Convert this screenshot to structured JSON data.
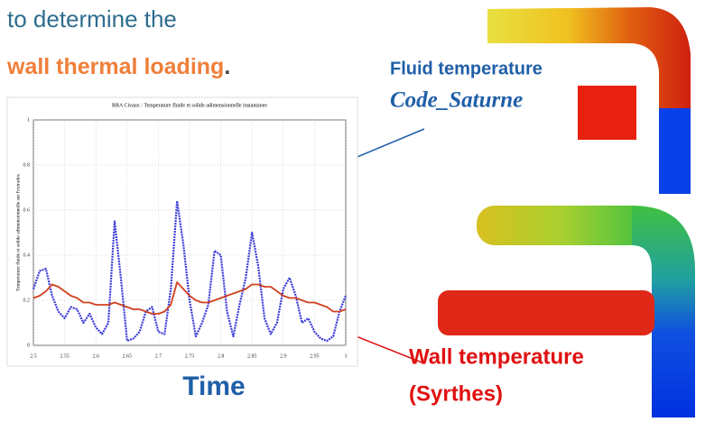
{
  "slide": {
    "intro": "to determine the",
    "highlight": "wall thermal loading",
    "period": ".",
    "fluid_label": "Fluid temperature",
    "fluid_code": "Code_Saturne",
    "wall_label": "Wall temperature",
    "wall_code": "(Syrthes)",
    "time_label": "Time"
  },
  "chart_data": {
    "type": "line",
    "title": "RRA Civaux : Temperature fluide et solide adimensionnelle instantanee",
    "y_label": "Temperature fluide et solide adimensionnelle sur l'extrados",
    "x": [
      2.5,
      2.51,
      2.52,
      2.53,
      2.54,
      2.55,
      2.56,
      2.57,
      2.58,
      2.59,
      2.6,
      2.61,
      2.62,
      2.63,
      2.64,
      2.65,
      2.66,
      2.67,
      2.68,
      2.69,
      2.7,
      2.71,
      2.72,
      2.73,
      2.74,
      2.75,
      2.76,
      2.77,
      2.78,
      2.79,
      2.8,
      2.81,
      2.82,
      2.83,
      2.84,
      2.85,
      2.86,
      2.87,
      2.88,
      2.89,
      2.9,
      2.91,
      2.92,
      2.93,
      2.94,
      2.95,
      2.96,
      2.97,
      2.98,
      2.99,
      3
    ],
    "series": [
      {
        "color": "#3a3ad8",
        "values": [
          0.25,
          0.33,
          0.34,
          0.22,
          0.15,
          0.12,
          0.17,
          0.16,
          0.1,
          0.14,
          0.08,
          0.05,
          0.1,
          0.55,
          0.3,
          0.02,
          0.03,
          0.06,
          0.15,
          0.17,
          0.06,
          0.05,
          0.25,
          0.64,
          0.45,
          0.2,
          0.04,
          0.1,
          0.18,
          0.42,
          0.4,
          0.15,
          0.04,
          0.18,
          0.3,
          0.5,
          0.35,
          0.12,
          0.05,
          0.1,
          0.25,
          0.3,
          0.22,
          0.1,
          0.12,
          0.06,
          0.03,
          0.02,
          0.04,
          0.15,
          0.22
        ]
      },
      {
        "color": "#d04020",
        "values": [
          0.21,
          0.22,
          0.24,
          0.27,
          0.26,
          0.24,
          0.22,
          0.21,
          0.19,
          0.19,
          0.18,
          0.18,
          0.18,
          0.19,
          0.18,
          0.17,
          0.16,
          0.16,
          0.15,
          0.14,
          0.14,
          0.15,
          0.18,
          0.28,
          0.25,
          0.22,
          0.2,
          0.19,
          0.19,
          0.2,
          0.21,
          0.22,
          0.23,
          0.24,
          0.25,
          0.27,
          0.27,
          0.26,
          0.26,
          0.24,
          0.22,
          0.21,
          0.21,
          0.2,
          0.19,
          0.19,
          0.18,
          0.17,
          0.15,
          0.15,
          0.16
        ]
      }
    ],
    "xlim": [
      2.5,
      3
    ],
    "ylim": [
      0,
      1
    ],
    "xticks": [
      2.5,
      2.55,
      2.6,
      2.65,
      2.7,
      2.75,
      2.8,
      2.85,
      2.9,
      2.95,
      3
    ],
    "yticks": [
      0,
      0.2,
      0.4,
      0.6,
      0.8,
      1
    ],
    "grid": true
  }
}
